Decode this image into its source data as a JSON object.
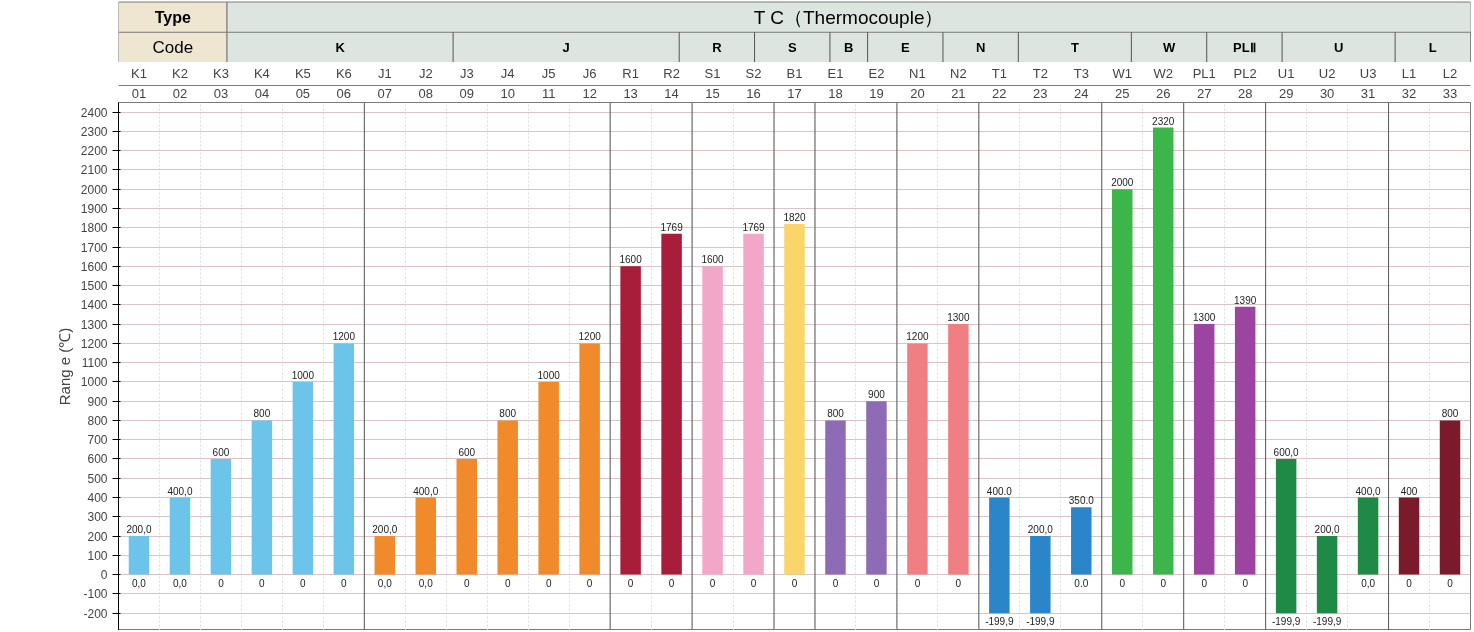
{
  "chart_data": {
    "type": "bar",
    "title": "T C（Thermocouple）",
    "ylabel": "Rang e (℃)",
    "categories": [
      "K1",
      "K2",
      "K3",
      "K4",
      "K5",
      "K6",
      "J1",
      "J2",
      "J3",
      "J4",
      "J5",
      "J6",
      "R1",
      "R2",
      "S1",
      "S2",
      "B1",
      "E1",
      "E2",
      "N1",
      "N2",
      "T1",
      "T2",
      "T3",
      "W1",
      "W2",
      "PL1",
      "PL2",
      "U1",
      "U2",
      "U3",
      "L1",
      "L2"
    ],
    "base": [
      0,
      0,
      0,
      0,
      0,
      0,
      0,
      0,
      0,
      0,
      0,
      0,
      0,
      0,
      0,
      0,
      0,
      0,
      0,
      0,
      0,
      -199.9,
      -199.9,
      0,
      0,
      0,
      0,
      0,
      -199.9,
      -199.9,
      0,
      0,
      0
    ],
    "values": [
      200,
      400,
      600,
      800,
      1000,
      1200,
      200,
      400,
      600,
      800,
      1000,
      1200,
      1600,
      1769,
      1600,
      1769,
      1820,
      800,
      900,
      1200,
      1300,
      599.9,
      399.9,
      350,
      2000,
      2320,
      1300,
      1390,
      799.9,
      399.9,
      400,
      400,
      800
    ],
    "colors": [
      "#6cc4ea",
      "#6cc4ea",
      "#6cc4ea",
      "#6cc4ea",
      "#6cc4ea",
      "#6cc4ea",
      "#f08a2a",
      "#f08a2a",
      "#f08a2a",
      "#f08a2a",
      "#f08a2a",
      "#f08a2a",
      "#a81e3a",
      "#a81e3a",
      "#f2a6c8",
      "#f2a6c8",
      "#f9d56a",
      "#8e6bb5",
      "#8e6bb5",
      "#f07f84",
      "#f07f84",
      "#2a86c8",
      "#2a86c8",
      "#2a86c8",
      "#3cb54a",
      "#3cb54a",
      "#9b44a0",
      "#9b44a0",
      "#1e8a46",
      "#1e8a46",
      "#1e8a46",
      "#7a1a2a",
      "#7a1a2a"
    ],
    "value_labels": [
      "200,0",
      "400,0",
      "600",
      "800",
      "1000",
      "1200",
      "200,0",
      "400,0",
      "600",
      "800",
      "1000",
      "1200",
      "1600",
      "1769",
      "1600",
      "1769",
      "1820",
      "800",
      "900",
      "1200",
      "1300",
      "400.0",
      "200,0",
      "350.0",
      "2000",
      "2320",
      "1300",
      "1390",
      "600,0",
      "200,0",
      "400,0",
      "400",
      "800"
    ],
    "x2lim": [
      0.5,
      33.5
    ],
    "x2ticks": [
      {
        "value": 1,
        "label": "01"
      },
      {
        "value": 2,
        "label": "02"
      },
      {
        "value": 3,
        "label": "03"
      },
      {
        "value": 4,
        "label": "04"
      },
      {
        "value": 5,
        "label": "05"
      },
      {
        "value": 6,
        "label": "06"
      },
      {
        "value": 7,
        "label": "07"
      },
      {
        "value": 8,
        "label": "08"
      },
      {
        "value": 9,
        "label": "09"
      },
      {
        "value": 10,
        "label": "10"
      },
      {
        "value": 11,
        "label": "11"
      },
      {
        "value": 12,
        "label": "12"
      },
      {
        "value": 13,
        "label": "13"
      },
      {
        "value": 14,
        "label": "14"
      },
      {
        "value": 15,
        "label": "15"
      },
      {
        "value": 16,
        "label": "16"
      },
      {
        "value": 17,
        "label": "17"
      },
      {
        "value": 18,
        "label": "18"
      },
      {
        "value": 19,
        "label": "19"
      },
      {
        "value": 20,
        "label": "20"
      },
      {
        "value": 21,
        "label": "21"
      },
      {
        "value": 22,
        "label": "22"
      },
      {
        "value": 23,
        "label": "23"
      },
      {
        "value": 24,
        "label": "24"
      },
      {
        "value": 25,
        "label": "25"
      },
      {
        "value": 26,
        "label": "26"
      },
      {
        "value": 27,
        "label": "27"
      },
      {
        "value": 28,
        "label": "28"
      },
      {
        "value": 29,
        "label": "29"
      },
      {
        "value": 30,
        "label": "30"
      },
      {
        "value": 31,
        "label": "31"
      },
      {
        "value": 32,
        "label": "32"
      },
      {
        "value": 33,
        "label": "33"
      }
    ],
    "annotations": [
      "Type",
      "Code",
      "K",
      "J",
      "R",
      "S",
      "B",
      "E",
      "N",
      "T",
      "W",
      "PLⅡ",
      "U",
      "L",
      {
        "text": "0,0",
        "x": "K1",
        "y": 0
      },
      {
        "text": "0,0",
        "x": "K2",
        "y": 0
      },
      {
        "text": "0",
        "x": "K3",
        "y": 0
      },
      {
        "text": "0",
        "x": "K4",
        "y": 0
      },
      {
        "text": "0",
        "x": "K5",
        "y": 0
      },
      {
        "text": "0",
        "x": "K6",
        "y": 0
      },
      {
        "text": "0,0",
        "x": "J1",
        "y": 0
      },
      {
        "text": "0,0",
        "x": "J2",
        "y": 0
      },
      {
        "text": "0",
        "x": "J3",
        "y": 0
      },
      {
        "text": "0",
        "x": "J4",
        "y": 0
      },
      {
        "text": "0",
        "x": "J5",
        "y": 0
      },
      {
        "text": "0",
        "x": "J6",
        "y": 0
      },
      {
        "text": "0",
        "x": "R1",
        "y": 0
      },
      {
        "text": "0",
        "x": "R2",
        "y": 0
      },
      {
        "text": "0",
        "x": "S1",
        "y": 0
      },
      {
        "text": "0",
        "x": "S2",
        "y": 0
      },
      {
        "text": "0",
        "x": "B1",
        "y": 0
      },
      {
        "text": "0",
        "x": "E1",
        "y": 0
      },
      {
        "text": "0",
        "x": "E2",
        "y": 0
      },
      {
        "text": "0",
        "x": "N1",
        "y": 0
      },
      {
        "text": "0",
        "x": "N2",
        "y": 0
      },
      {
        "text": "-199,9",
        "x": "T1",
        "y": -199.9
      },
      {
        "text": "-199,9",
        "x": "T2",
        "y": -199.9
      },
      {
        "text": "0.0",
        "x": "T3",
        "y": 0
      },
      {
        "text": "0",
        "x": "W1",
        "y": 0
      },
      {
        "text": "0",
        "x": "W2",
        "y": 0
      },
      {
        "text": "0",
        "x": "PL1",
        "y": 0
      },
      {
        "text": "0",
        "x": "PL2",
        "y": 0
      },
      {
        "text": "-199,9",
        "x": "U1",
        "y": -199.9
      },
      {
        "text": "-199,9",
        "x": "U2",
        "y": -199.9
      },
      {
        "text": "0,0",
        "x": "U3",
        "y": 0
      },
      {
        "text": "0",
        "x": "L1",
        "y": 0
      },
      {
        "text": "0",
        "x": "L2",
        "y": 0
      }
    ],
    "ylim": [
      -290,
      2450
    ],
    "yticks": [
      -200,
      -100,
      0,
      100,
      200,
      300,
      400,
      500,
      600,
      700,
      800,
      900,
      1000,
      1100,
      1200,
      1300,
      1400,
      1500,
      1600,
      1700,
      1800,
      1900,
      2000,
      2100,
      2200,
      2300,
      2400
    ],
    "grid": true
  }
}
